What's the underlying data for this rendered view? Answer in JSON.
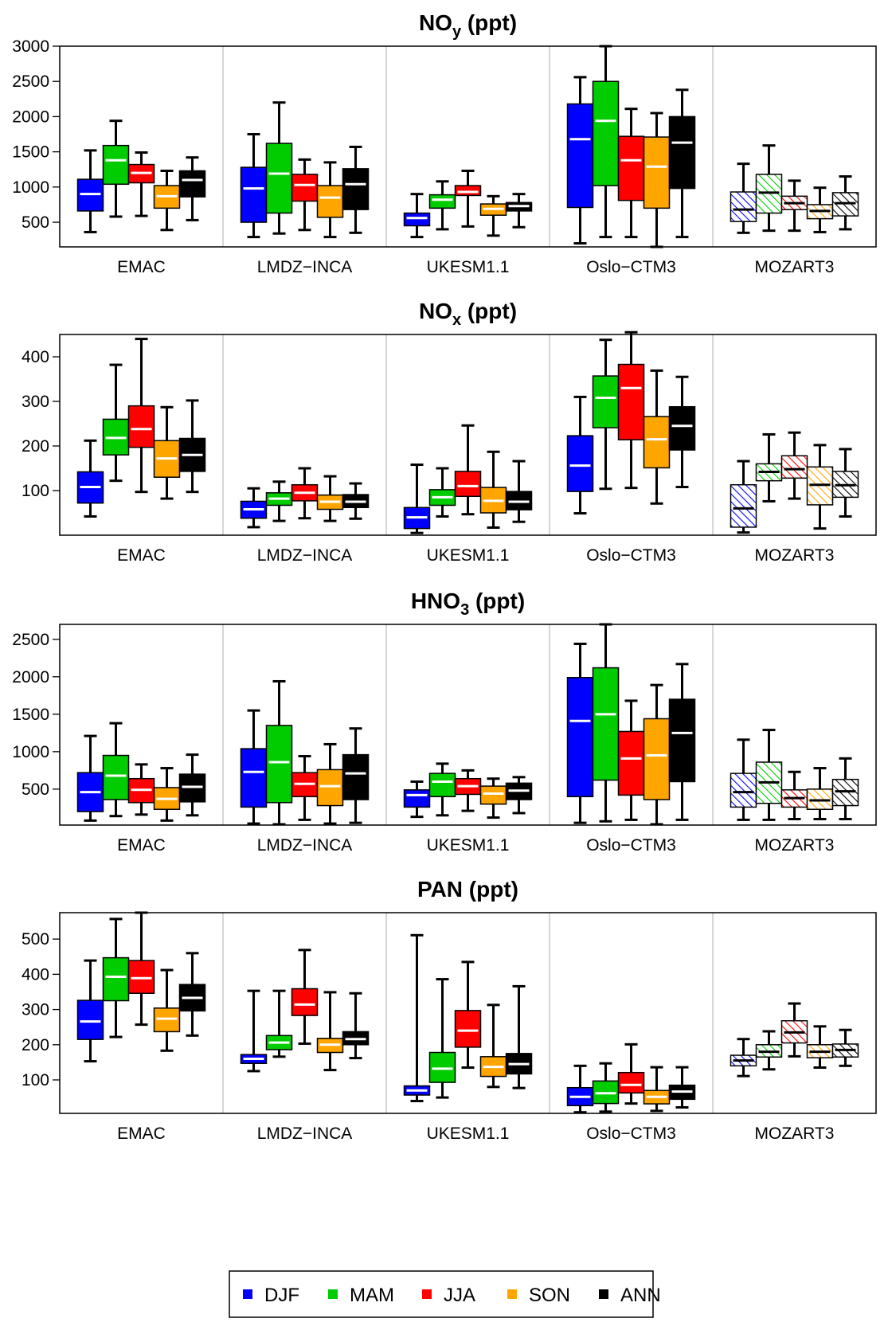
{
  "chart_data": [
    {
      "type": "box",
      "title": "NO",
      "title_sub": "y",
      "title_suffix": " (ppt)",
      "ylim": [
        150,
        3000
      ],
      "yticks": [
        500,
        1000,
        1500,
        2000,
        2500,
        3000
      ],
      "categories": [
        "EMAC",
        "LMDZ−INCA",
        "UKESM1.1",
        "Oslo−CTM3",
        "MOZART3"
      ],
      "hatched_category": "MOZART3",
      "boxes": [
        [
          [
            360,
            660,
            900,
            1110,
            1520
          ],
          [
            580,
            1040,
            1380,
            1590,
            1940
          ],
          [
            590,
            1060,
            1200,
            1320,
            1490
          ],
          [
            390,
            700,
            870,
            1020,
            1230
          ],
          [
            530,
            860,
            1100,
            1230,
            1420
          ]
        ],
        [
          [
            290,
            500,
            980,
            1280,
            1750
          ],
          [
            340,
            630,
            1190,
            1620,
            2200
          ],
          [
            390,
            800,
            1030,
            1180,
            1390
          ],
          [
            290,
            570,
            850,
            1020,
            1350
          ],
          [
            350,
            680,
            1040,
            1260,
            1570
          ]
        ],
        [
          [
            290,
            450,
            560,
            630,
            900
          ],
          [
            400,
            700,
            820,
            890,
            1080
          ],
          [
            440,
            880,
            930,
            1020,
            1230
          ],
          [
            310,
            600,
            690,
            760,
            870
          ],
          [
            430,
            660,
            730,
            780,
            900
          ]
        ],
        [
          [
            200,
            710,
            1680,
            2180,
            2560
          ],
          [
            290,
            1020,
            1940,
            2500,
            3000
          ],
          [
            290,
            810,
            1380,
            1720,
            2110
          ],
          [
            150,
            700,
            1290,
            1710,
            2050
          ],
          [
            290,
            980,
            1630,
            2000,
            2380
          ]
        ],
        [
          [
            350,
            510,
            680,
            930,
            1330
          ],
          [
            380,
            630,
            920,
            1180,
            1590
          ],
          [
            380,
            680,
            770,
            870,
            1090
          ],
          [
            360,
            550,
            660,
            750,
            990
          ],
          [
            400,
            590,
            770,
            920,
            1150
          ]
        ]
      ]
    },
    {
      "type": "box",
      "title": "NO",
      "title_sub": "x",
      "title_suffix": " (ppt)",
      "ylim": [
        0,
        450
      ],
      "yticks": [
        100,
        200,
        300,
        400
      ],
      "categories": [
        "EMAC",
        "LMDZ−INCA",
        "UKESM1.1",
        "Oslo−CTM3",
        "MOZART3"
      ],
      "hatched_category": "MOZART3",
      "boxes": [
        [
          [
            42,
            72,
            108,
            142,
            212
          ],
          [
            122,
            180,
            218,
            260,
            382
          ],
          [
            97,
            197,
            238,
            290,
            440
          ],
          [
            82,
            130,
            172,
            212,
            287
          ],
          [
            97,
            143,
            180,
            217,
            302
          ]
        ],
        [
          [
            18,
            38,
            58,
            76,
            105
          ],
          [
            32,
            67,
            82,
            95,
            120
          ],
          [
            38,
            77,
            95,
            113,
            150
          ],
          [
            32,
            58,
            75,
            90,
            132
          ],
          [
            37,
            62,
            75,
            91,
            116
          ]
        ],
        [
          [
            5,
            15,
            40,
            62,
            158
          ],
          [
            42,
            67,
            85,
            102,
            150
          ],
          [
            47,
            87,
            110,
            143,
            246
          ],
          [
            17,
            50,
            77,
            107,
            187
          ],
          [
            30,
            57,
            75,
            98,
            166
          ]
        ],
        [
          [
            49,
            98,
            156,
            223,
            310
          ],
          [
            104,
            241,
            308,
            357,
            438
          ],
          [
            106,
            214,
            330,
            383,
            455
          ],
          [
            71,
            151,
            215,
            266,
            369
          ],
          [
            108,
            191,
            245,
            288,
            355
          ]
        ],
        [
          [
            6,
            18,
            60,
            113,
            166
          ],
          [
            76,
            122,
            142,
            160,
            226
          ],
          [
            82,
            128,
            148,
            178,
            230
          ],
          [
            15,
            68,
            113,
            153,
            202
          ],
          [
            42,
            85,
            112,
            143,
            193
          ]
        ]
      ]
    },
    {
      "type": "box",
      "title": "HNO",
      "title_sub": "3",
      "title_suffix": " (ppt)",
      "ylim": [
        20,
        2700
      ],
      "yticks": [
        500,
        1000,
        1500,
        2000,
        2500
      ],
      "categories": [
        "EMAC",
        "LMDZ−INCA",
        "UKESM1.1",
        "Oslo−CTM3",
        "MOZART3"
      ],
      "hatched_category": "MOZART3",
      "boxes": [
        [
          [
            80,
            200,
            460,
            720,
            1210
          ],
          [
            140,
            360,
            680,
            950,
            1380
          ],
          [
            160,
            320,
            490,
            640,
            830
          ],
          [
            80,
            230,
            370,
            520,
            780
          ],
          [
            150,
            330,
            530,
            700,
            960
          ]
        ],
        [
          [
            40,
            260,
            730,
            1040,
            1550
          ],
          [
            30,
            320,
            860,
            1350,
            1940
          ],
          [
            90,
            400,
            570,
            720,
            940
          ],
          [
            40,
            280,
            540,
            760,
            1100
          ],
          [
            50,
            360,
            710,
            960,
            1310
          ]
        ],
        [
          [
            130,
            260,
            420,
            490,
            600
          ],
          [
            150,
            400,
            600,
            710,
            840
          ],
          [
            210,
            430,
            540,
            640,
            750
          ],
          [
            120,
            300,
            440,
            540,
            640
          ],
          [
            180,
            360,
            480,
            580,
            660
          ]
        ],
        [
          [
            50,
            400,
            1410,
            1990,
            2440
          ],
          [
            70,
            620,
            1500,
            2120,
            2700
          ],
          [
            90,
            420,
            910,
            1270,
            1680
          ],
          [
            30,
            360,
            950,
            1440,
            1890
          ],
          [
            90,
            600,
            1250,
            1700,
            2170
          ]
        ],
        [
          [
            90,
            260,
            460,
            710,
            1160
          ],
          [
            90,
            310,
            590,
            860,
            1290
          ],
          [
            100,
            260,
            380,
            490,
            730
          ],
          [
            100,
            230,
            350,
            500,
            780
          ],
          [
            100,
            280,
            470,
            630,
            910
          ]
        ]
      ]
    },
    {
      "type": "box",
      "title": "PAN",
      "title_sub": "",
      "title_suffix": " (ppt)",
      "ylim": [
        5,
        575
      ],
      "yticks": [
        100,
        200,
        300,
        400,
        500
      ],
      "categories": [
        "EMAC",
        "LMDZ−INCA",
        "UKESM1.1",
        "Oslo−CTM3",
        "MOZART3"
      ],
      "hatched_category": "MOZART3",
      "boxes": [
        [
          [
            153,
            215,
            266,
            326,
            439
          ],
          [
            222,
            325,
            393,
            447,
            557
          ],
          [
            257,
            346,
            389,
            439,
            575
          ],
          [
            183,
            237,
            274,
            304,
            412
          ],
          [
            226,
            296,
            333,
            371,
            460
          ]
        ],
        [
          [
            125,
            147,
            160,
            172,
            353
          ],
          [
            166,
            186,
            206,
            226,
            353
          ],
          [
            203,
            283,
            314,
            359,
            469
          ],
          [
            128,
            178,
            200,
            218,
            349
          ],
          [
            162,
            200,
            216,
            237,
            346
          ]
        ],
        [
          [
            40,
            57,
            70,
            83,
            511
          ],
          [
            50,
            93,
            132,
            178,
            386
          ],
          [
            135,
            193,
            240,
            297,
            435
          ],
          [
            80,
            110,
            137,
            166,
            313
          ],
          [
            77,
            117,
            145,
            175,
            366
          ]
        ],
        [
          [
            8,
            27,
            52,
            78,
            140
          ],
          [
            10,
            33,
            62,
            97,
            147
          ],
          [
            33,
            63,
            86,
            121,
            201
          ],
          [
            12,
            32,
            52,
            70,
            136
          ],
          [
            22,
            45,
            67,
            85,
            136
          ]
        ],
        [
          [
            111,
            140,
            155,
            170,
            216
          ],
          [
            130,
            165,
            180,
            200,
            238
          ],
          [
            167,
            205,
            235,
            268,
            317
          ],
          [
            135,
            163,
            180,
            200,
            252
          ],
          [
            140,
            165,
            185,
            202,
            242
          ]
        ]
      ]
    }
  ],
  "legend": [
    {
      "label": "DJF",
      "color": "#0000FF"
    },
    {
      "label": "MAM",
      "color": "#00CC00"
    },
    {
      "label": "JJA",
      "color": "#FF0000"
    },
    {
      "label": "SON",
      "color": "#FFA500"
    },
    {
      "label": "ANN",
      "color": "#000000"
    }
  ],
  "colors": {
    "DJF": "#0000FF",
    "MAM": "#00CC00",
    "JJA": "#FF0000",
    "SON": "#FFA500",
    "ANN": "#000000"
  }
}
